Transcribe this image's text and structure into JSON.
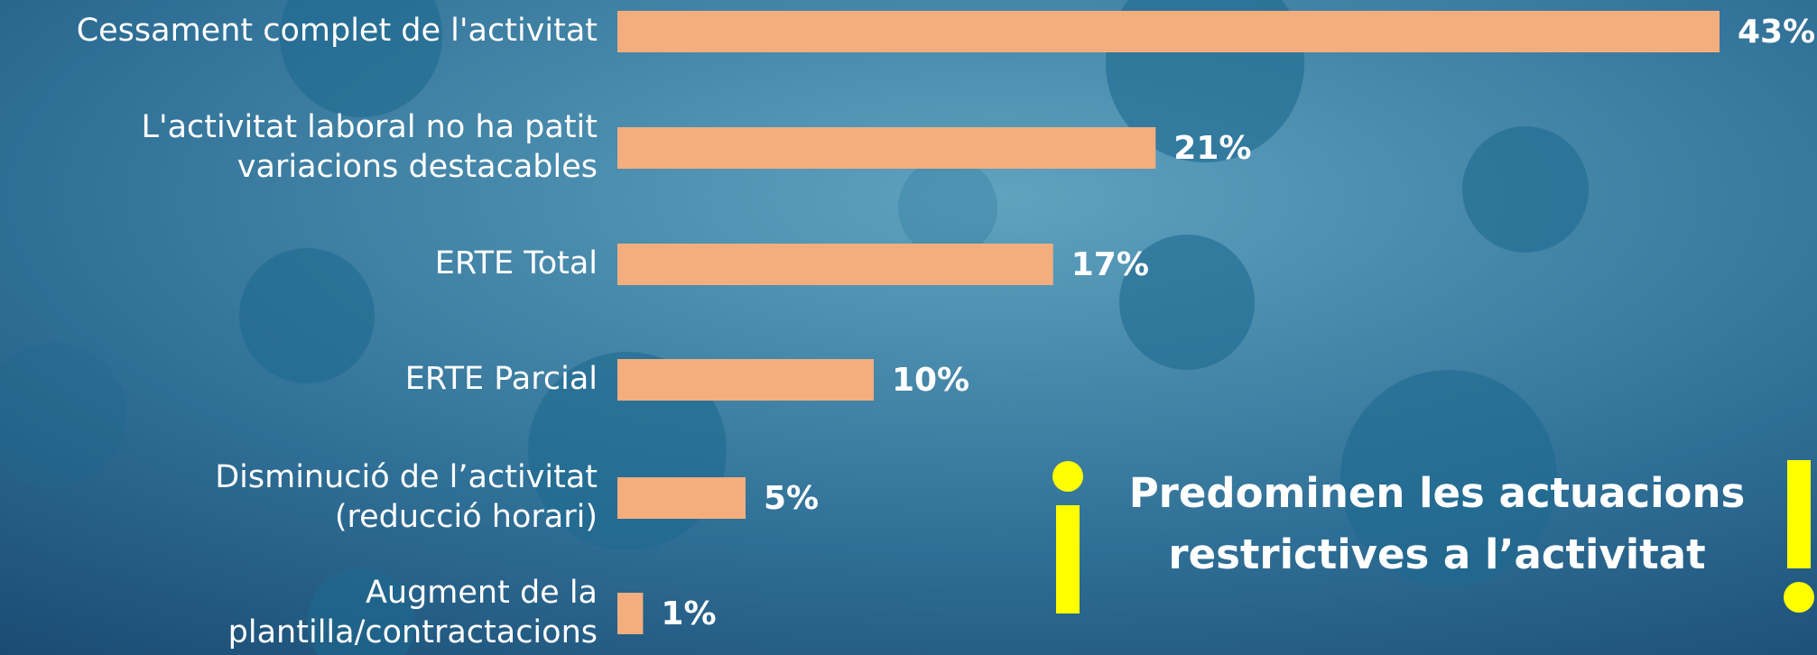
{
  "chart_data": {
    "type": "barh",
    "categories": [
      [
        "Cessament complet de l'activitat"
      ],
      [
        "L'activitat laboral no ha patit",
        "variacions destacables"
      ],
      [
        "ERTE Total"
      ],
      [
        "ERTE Parcial"
      ],
      [
        "Disminució de l’activitat",
        "(reducció horari)"
      ],
      [
        "Augment de la",
        "plantilla/contractacions"
      ]
    ],
    "values": [
      43,
      21,
      17,
      10,
      5,
      1
    ],
    "value_labels": [
      "43%",
      "21%",
      "17%",
      "10%",
      "5%",
      "1%"
    ],
    "color": "#f4ae7e",
    "annotation": [
      "Predominen les actuacions",
      "restrictives a l’activitat"
    ]
  }
}
